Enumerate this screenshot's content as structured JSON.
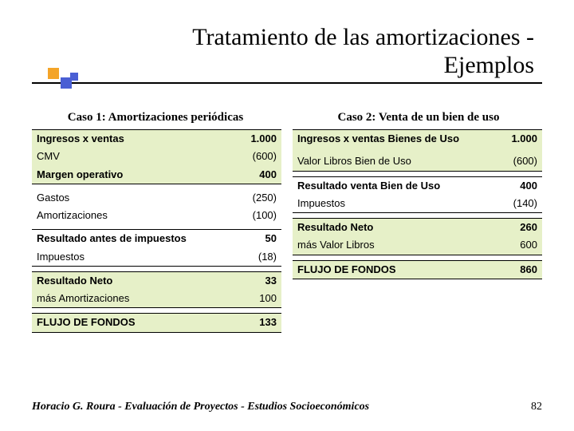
{
  "title_line1": "Tratamiento de las amortizaciones -",
  "title_line2": "Ejemplos",
  "caption1": "Caso 1: Amortizaciones periódicas",
  "caption2": "Caso 2: Venta de un bien de uso",
  "footer_author": "Horacio G. Roura - Evaluación de Proyectos - Estudios Socioeconómicos",
  "footer_page": "82",
  "table1": {
    "rows": [
      {
        "label": "Ingresos x ventas",
        "value": "1.000",
        "bold": true,
        "shaded": true,
        "borderT": true
      },
      {
        "label": "CMV",
        "value": "(600)",
        "shaded": true
      },
      {
        "label": "Margen operativo",
        "value": "400",
        "bold": true,
        "shaded": true,
        "borderB": true
      },
      {
        "label": " ",
        "value": " "
      },
      {
        "label": "Gastos",
        "value": "(250)"
      },
      {
        "label": "Amortizaciones",
        "value": "(100)"
      },
      {
        "label": " ",
        "value": " "
      },
      {
        "label": "Resultado antes de impuestos",
        "value": "50",
        "bold": true,
        "borderT": true
      },
      {
        "label": "Impuestos",
        "value": "(18)",
        "borderB": true
      },
      {
        "label": " ",
        "value": " "
      },
      {
        "label": "Resultado Neto",
        "value": "33",
        "bold": true,
        "shaded": true,
        "borderT": true
      },
      {
        "label": "más Amortizaciones",
        "value": "100",
        "shaded": true,
        "borderB": true
      },
      {
        "label": " ",
        "value": " "
      },
      {
        "label": "FLUJO DE FONDOS",
        "value": "133",
        "bold": true,
        "shaded": true,
        "borderT": true,
        "borderB": true
      }
    ]
  },
  "table2": {
    "rows": [
      {
        "label": "Ingresos x ventas Bienes de Uso",
        "value": "1.000",
        "bold": true,
        "shaded": true,
        "borderT": true
      },
      {
        "label": " ",
        "value": " ",
        "shaded": true
      },
      {
        "label": "Valor Libros Bien de Uso",
        "value": "(600)",
        "shaded": true,
        "borderB": true
      },
      {
        "label": " ",
        "value": " "
      },
      {
        "label": "Resultado venta Bien de Uso",
        "value": "400",
        "bold": true,
        "borderT": true
      },
      {
        "label": "Impuestos",
        "value": "(140)",
        "borderB": true
      },
      {
        "label": " ",
        "value": " "
      },
      {
        "label": "Resultado Neto",
        "value": "260",
        "bold": true,
        "shaded": true,
        "borderT": true
      },
      {
        "label": "más Valor Libros",
        "value": "600",
        "shaded": true,
        "borderB": true
      },
      {
        "label": " ",
        "value": " "
      },
      {
        "label": "FLUJO DE FONDOS",
        "value": "860",
        "bold": true,
        "shaded": true,
        "borderT": true,
        "borderB": true
      }
    ]
  }
}
